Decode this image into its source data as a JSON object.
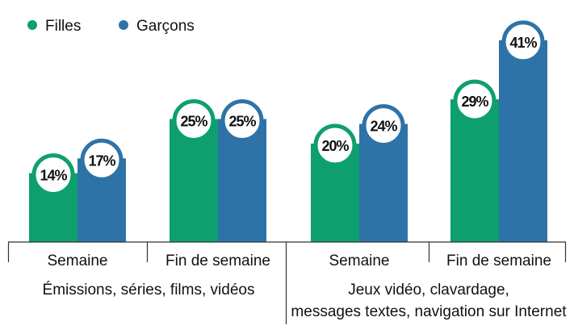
{
  "chart_data": {
    "type": "bar",
    "ylim": [
      0,
      45
    ],
    "colors": {
      "filles": "#0e9f6e",
      "garcons": "#2e73a8",
      "axis": "#333333"
    },
    "legend": {
      "position": "top-left"
    },
    "series": [
      {
        "name": "Filles",
        "values": [
          14,
          25,
          20,
          29
        ]
      },
      {
        "name": "Garçons",
        "values": [
          17,
          25,
          24,
          41
        ]
      }
    ],
    "categories": [
      "Semaine",
      "Fin de semaine",
      "Semaine",
      "Fin de semaine"
    ],
    "data_labels": [
      [
        "14%",
        "25%",
        "20%",
        "29%"
      ],
      [
        "17%",
        "25%",
        "24%",
        "41%"
      ]
    ],
    "groups": [
      {
        "lines": [
          "Émissions, séries, films, vidéos"
        ]
      },
      {
        "lines": [
          "Jeux vidéo, clavardage,",
          "messages textes, navigation sur Internet"
        ]
      }
    ]
  }
}
